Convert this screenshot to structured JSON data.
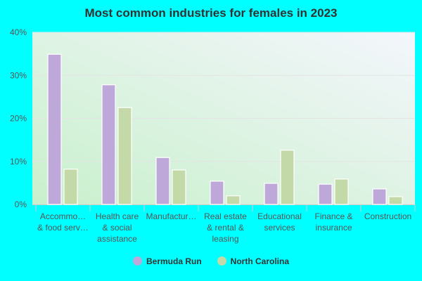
{
  "chart_data": {
    "type": "bar",
    "title": "Most common industries for females in 2023",
    "categories": [
      [
        "Accommo…",
        "& food serv…"
      ],
      [
        "Health care",
        "& social",
        "assistance"
      ],
      [
        "Manufactur…"
      ],
      [
        "Real estate",
        "& rental &",
        "leasing"
      ],
      [
        "Educational",
        "services"
      ],
      [
        "Finance &",
        "insurance"
      ],
      [
        "Construction"
      ]
    ],
    "series": [
      {
        "name": "Bermuda Run",
        "color": "#bea8d9",
        "values": [
          34.9,
          27.8,
          10.9,
          5.4,
          4.9,
          4.7,
          3.6
        ]
      },
      {
        "name": "North Carolina",
        "color": "#c4d9a8",
        "values": [
          8.2,
          22.5,
          8.0,
          2.0,
          12.6,
          5.9,
          1.8
        ]
      }
    ],
    "yticks": [
      "0%",
      "10%",
      "20%",
      "30%",
      "40%"
    ],
    "ylim": [
      0,
      40
    ],
    "grid": true,
    "legend": "bottom"
  }
}
